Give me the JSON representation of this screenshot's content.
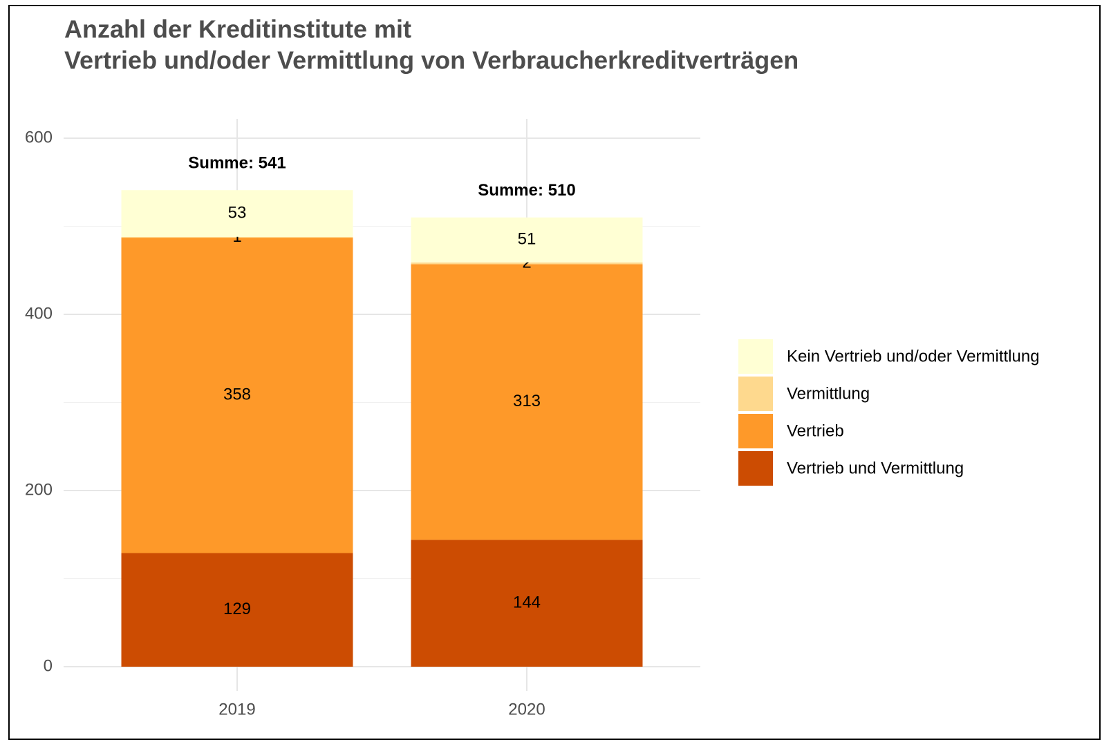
{
  "chart_data": {
    "type": "stacked_bar",
    "title": [
      "Anzahl der Kreditinstitute mit",
      "Vertrieb und/oder Vermittlung von Verbraucherkreditverträgen"
    ],
    "categories": [
      "2019",
      "2020"
    ],
    "series": [
      {
        "name": "Vertrieb und Vermittlung",
        "color": "#cc4c02",
        "values": [
          129,
          144
        ]
      },
      {
        "name": "Vertrieb",
        "color": "#fe9929",
        "values": [
          358,
          313
        ]
      },
      {
        "name": "Vermittlung",
        "color": "#fed98e",
        "values": [
          1,
          2
        ]
      },
      {
        "name": "Kein Vertrieb und/oder Vermittlung",
        "color": "#ffffd4",
        "values": [
          53,
          51
        ]
      }
    ],
    "annotations": [
      "Summe: 541",
      "Summe: 510"
    ],
    "ylim": [
      0,
      600
    ],
    "yticks": [
      0,
      200,
      400,
      600
    ],
    "minor_yticks": [
      100,
      300,
      500
    ],
    "grid": true,
    "legend": "right"
  }
}
